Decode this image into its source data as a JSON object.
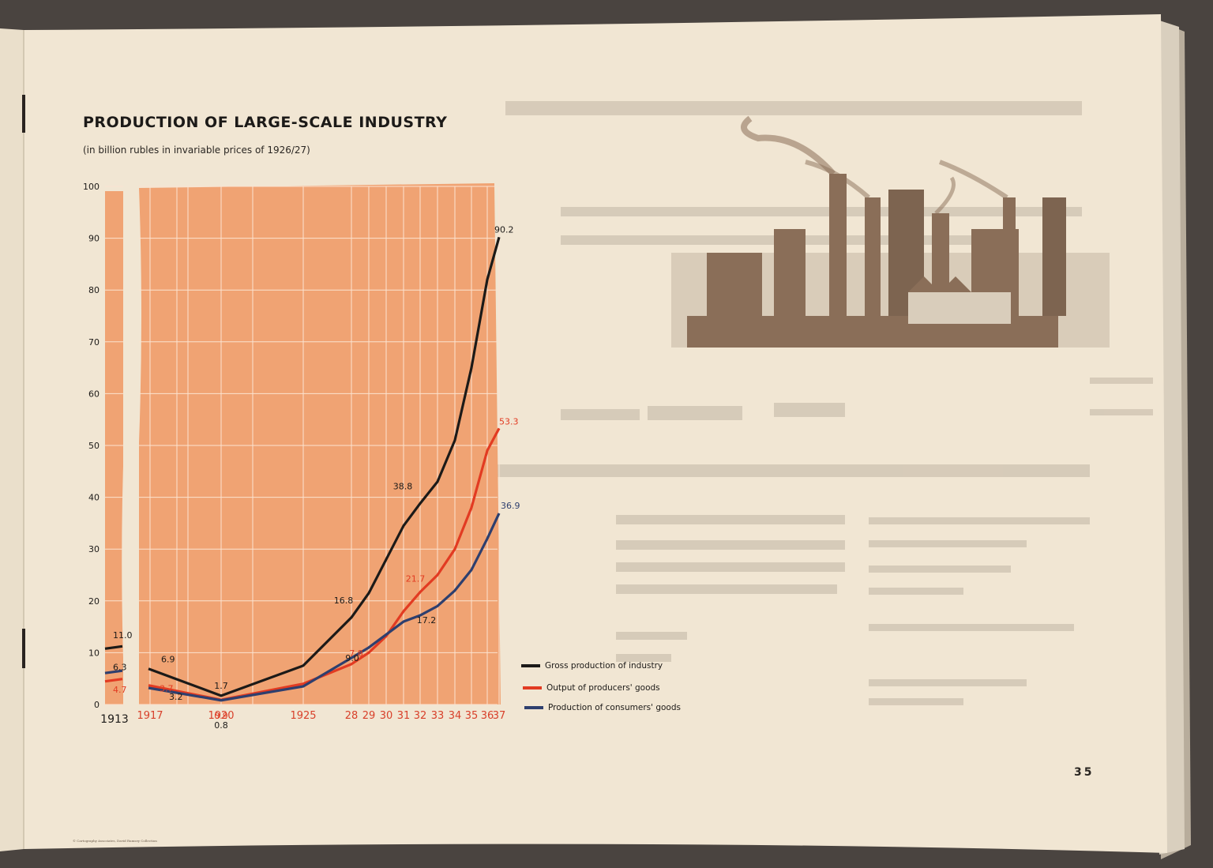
{
  "page": {
    "title": "PRODUCTION OF LARGE-SCALE INDUSTRY",
    "subtitle": "(in billion rubles in invariable prices of 1926/27)",
    "page_number": "35",
    "credit": "© Cartography Associates, David Rumsey Collection"
  },
  "colors": {
    "paper": "#f1e6d3",
    "plot_bg": "#f0a373",
    "gross": "#1c1a18",
    "producers": "#e23b22",
    "consumers": "#2e3f6e",
    "year_label": "#d8402a"
  },
  "chart_data": {
    "type": "line",
    "title": "PRODUCTION OF LARGE-SCALE INDUSTRY",
    "subtitle": "(in billion rubles in invariable prices of 1926/27)",
    "ylim": [
      0,
      100
    ],
    "yticks": [
      0,
      10,
      20,
      30,
      40,
      50,
      60,
      70,
      80,
      90,
      100
    ],
    "grid": true,
    "legend_position": "bottom-right",
    "x_tick_labels": [
      {
        "x": 1913,
        "label": "1913"
      },
      {
        "x": 1917,
        "label": "1917"
      },
      {
        "x": 1920,
        "label": "1920"
      },
      {
        "x": 1925,
        "label": "1925"
      },
      {
        "x": 1928,
        "label": "28"
      },
      {
        "x": 1929,
        "label": "29"
      },
      {
        "x": 1930,
        "label": "30"
      },
      {
        "x": 1931,
        "label": "31"
      },
      {
        "x": 1932,
        "label": "32"
      },
      {
        "x": 1933,
        "label": "33"
      },
      {
        "x": 1934,
        "label": "34"
      },
      {
        "x": 1935,
        "label": "35"
      },
      {
        "x": 1936,
        "label": "36"
      },
      {
        "x": 1937,
        "label": "37"
      }
    ],
    "series": [
      {
        "name": "Gross production of industry",
        "color": "#1c1a18",
        "points": [
          [
            1913,
            11.0
          ],
          [
            1917,
            6.9
          ],
          [
            1920,
            1.7
          ],
          [
            1925,
            7.5
          ],
          [
            1928,
            16.8
          ],
          [
            1929,
            21.5
          ],
          [
            1930,
            28
          ],
          [
            1931,
            34.5
          ],
          [
            1932,
            38.8
          ],
          [
            1933,
            43
          ],
          [
            1934,
            51
          ],
          [
            1935,
            65
          ],
          [
            1936,
            82
          ],
          [
            1937,
            90.2
          ]
        ],
        "labels": [
          {
            "x": 1913,
            "text": "11.0"
          },
          {
            "x": 1917,
            "text": "6.9"
          },
          {
            "x": 1920,
            "text": "1.7"
          },
          {
            "x": 1928,
            "text": "16.8"
          },
          {
            "x": 1932,
            "text": "38.8"
          },
          {
            "x": 1937,
            "text": "90.2"
          }
        ]
      },
      {
        "name": "Output of producers' goods",
        "color": "#e23b22",
        "points": [
          [
            1913,
            4.7
          ],
          [
            1917,
            3.7
          ],
          [
            1920,
            0.9
          ],
          [
            1925,
            4.0
          ],
          [
            1928,
            7.8
          ],
          [
            1929,
            10
          ],
          [
            1930,
            13.2
          ],
          [
            1931,
            18
          ],
          [
            1932,
            21.7
          ],
          [
            1933,
            25
          ],
          [
            1934,
            30
          ],
          [
            1935,
            38
          ],
          [
            1936,
            49
          ],
          [
            1937,
            53.3
          ]
        ],
        "labels": [
          {
            "x": 1913,
            "text": "4.7"
          },
          {
            "x": 1917,
            "text": "3.7"
          },
          {
            "x": 1920,
            "text": "0.9"
          },
          {
            "x": 1928,
            "text": "7.8"
          },
          {
            "x": 1932,
            "text": "21.7"
          },
          {
            "x": 1937,
            "text": "53.3"
          }
        ]
      },
      {
        "name": "Production of consumers' goods",
        "color": "#2e3f6e",
        "points": [
          [
            1913,
            6.3
          ],
          [
            1917,
            3.2
          ],
          [
            1920,
            0.8
          ],
          [
            1925,
            3.5
          ],
          [
            1928,
            9.0
          ],
          [
            1929,
            11
          ],
          [
            1930,
            13.5
          ],
          [
            1931,
            16
          ],
          [
            1932,
            17.2
          ],
          [
            1933,
            19
          ],
          [
            1934,
            22
          ],
          [
            1935,
            26
          ],
          [
            1936,
            32
          ],
          [
            1937,
            36.9
          ]
        ],
        "labels": [
          {
            "x": 1913,
            "text": "6.3"
          },
          {
            "x": 1917,
            "text": "3.2"
          },
          {
            "x": 1920,
            "text": "0.8"
          },
          {
            "x": 1928,
            "text": "9.0"
          },
          {
            "x": 1932,
            "text": "17.2"
          },
          {
            "x": 1937,
            "text": "36.9"
          }
        ]
      }
    ]
  }
}
